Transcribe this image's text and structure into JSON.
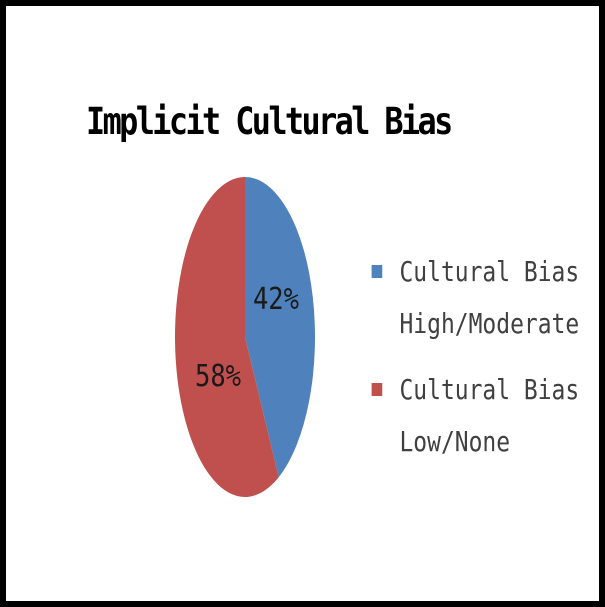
{
  "chart_data": {
    "type": "pie",
    "title": "Implicit Cultural Bias",
    "slices": [
      {
        "label": "Cultural Bias High/Moderate",
        "label_lines": [
          "Cultural Bias",
          "High/Moderate"
        ],
        "value": 42,
        "data_label": "42%",
        "color": "#4F81BD"
      },
      {
        "label": "Cultural Bias Low/None",
        "label_lines": [
          "Cultural Bias",
          "Low/None"
        ],
        "value": 58,
        "data_label": "58%",
        "color": "#C0504D"
      }
    ],
    "legend_position": "right"
  }
}
